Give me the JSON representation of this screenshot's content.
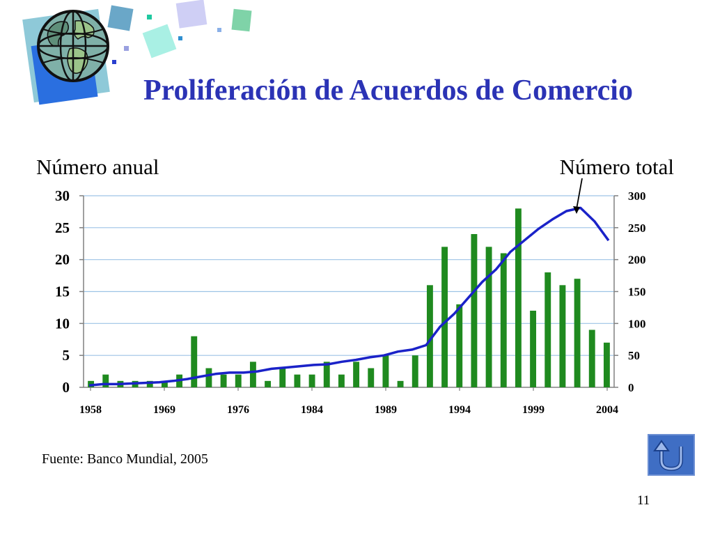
{
  "slide": {
    "title": "Proliferación de Acuerdos de Comercio",
    "left_axis_label": "Número anual",
    "right_axis_label": "Número total",
    "source": "Fuente: Banco Mundial, 2005",
    "page_number": "11"
  },
  "icons": {
    "logo": "globe-with-squares-icon",
    "back": "u-turn-arrow-icon"
  },
  "colors": {
    "title": "#2b33b5",
    "bars": "#1f8a1f",
    "line": "#1a22c8",
    "gridlines": "#9dc3e6",
    "back_button": "#3f6ec4"
  },
  "chart_data": {
    "type": "bar",
    "title": "",
    "xlabel": "",
    "ylabel": "Número anual",
    "y2label": "Número total",
    "ylim": [
      0,
      30
    ],
    "y2lim": [
      0,
      300
    ],
    "yticks": [
      "0",
      "5",
      "10",
      "15",
      "20",
      "25",
      "30"
    ],
    "y2ticks": [
      "0",
      "50",
      "100",
      "150",
      "200",
      "250",
      "300"
    ],
    "xtick_labels": [
      "1958",
      "1969",
      "1976",
      "1984",
      "1989",
      "1994",
      "1999",
      "2004"
    ],
    "grid": true,
    "series": [
      {
        "type": "bar",
        "axis": "left",
        "values": [
          1,
          2,
          1,
          1,
          1,
          1,
          2,
          8,
          3,
          2,
          2,
          4,
          1,
          3,
          2,
          2,
          4,
          2,
          4,
          3,
          5,
          1,
          5,
          16,
          22,
          13,
          24,
          22,
          21,
          28,
          12,
          18,
          16,
          17,
          9,
          7
        ]
      },
      {
        "type": "line",
        "axis": "right",
        "values": [
          3,
          5,
          5,
          6,
          7,
          8,
          10,
          13,
          17,
          21,
          23,
          23,
          25,
          29,
          31,
          33,
          35,
          36,
          40,
          43,
          47,
          50,
          56,
          59,
          66,
          95,
          115,
          140,
          165,
          185,
          212,
          230,
          248,
          263,
          276,
          281,
          260,
          230
        ]
      }
    ]
  }
}
